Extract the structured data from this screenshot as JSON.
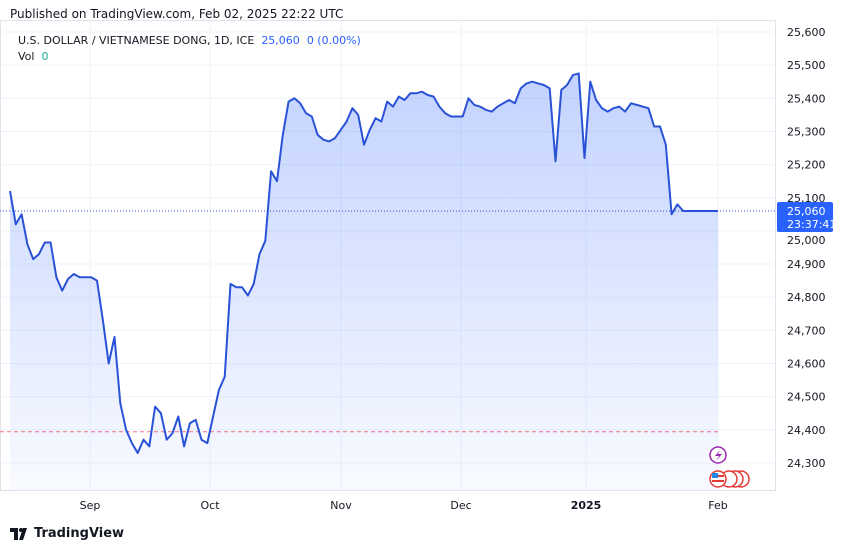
{
  "header": {
    "published": "Published on TradingView.com, Feb 02, 2025 22:22 UTC"
  },
  "legend": {
    "symbol": "U.S. DOLLAR / VIETNAMESE DONG, 1D, ICE",
    "price": "25,060",
    "change": "0 (0.00%)",
    "vol_label": "Vol",
    "vol_value": "0"
  },
  "price_label": {
    "value": "25,060",
    "countdown": "23:37:41"
  },
  "logo": {
    "text": "TradingView"
  },
  "colors": {
    "line": "#2952d6",
    "fill": "#2962ff",
    "price_label": "#2962ff",
    "low_line": "#f23645"
  },
  "icons": [
    "lightning-event-icon",
    "us-flag-event-icon"
  ],
  "chart_data": {
    "type": "area",
    "title": "U.S. DOLLAR / VIETNAMESE DONG, 1D, ICE",
    "ylim": [
      24220,
      25650
    ],
    "y_ticks": [
      "25,600",
      "25,500",
      "25,400",
      "25,300",
      "25,200",
      "25,100",
      "25,000",
      "24,900",
      "24,800",
      "24,700",
      "24,600",
      "24,500",
      "24,400",
      "24,300"
    ],
    "y_tick_values": [
      25600,
      25500,
      25400,
      25300,
      25200,
      25100,
      25000,
      24900,
      24800,
      24700,
      24600,
      24500,
      24400,
      24300
    ],
    "x_ticks": [
      "Sep",
      "Oct",
      "Nov",
      "Dec",
      "2025",
      "Feb"
    ],
    "last_value": 25060,
    "reference_line": 24394,
    "grid": true,
    "values": [
      25120,
      25020,
      25050,
      24960,
      24915,
      24930,
      24965,
      24965,
      24860,
      24820,
      24855,
      24870,
      24860,
      24860,
      24860,
      24850,
      24730,
      24600,
      24680,
      24480,
      24400,
      24360,
      24330,
      24370,
      24350,
      24470,
      24450,
      24370,
      24390,
      24440,
      24350,
      24420,
      24430,
      24370,
      24360,
      24440,
      24520,
      24560,
      24840,
      24830,
      24830,
      24805,
      24840,
      24930,
      24970,
      25180,
      25150,
      25290,
      25390,
      25400,
      25385,
      25355,
      25345,
      25290,
      25275,
      25270,
      25280,
      25305,
      25330,
      25370,
      25350,
      25260,
      25305,
      25340,
      25330,
      25390,
      25375,
      25405,
      25395,
      25415,
      25415,
      25420,
      25410,
      25405,
      25375,
      25355,
      25345,
      25345,
      25345,
      25400,
      25380,
      25375,
      25365,
      25360,
      25375,
      25385,
      25395,
      25385,
      25430,
      25445,
      25450,
      25445,
      25440,
      25430,
      25210,
      25425,
      25440,
      25470,
      25475,
      25220,
      25450,
      25395,
      25370,
      25360,
      25370,
      25375,
      25360,
      25385,
      25380,
      25375,
      25370,
      25315,
      25315,
      25260,
      25050,
      25080,
      25060,
      25060,
      25060,
      25060,
      25060,
      25060,
      25060
    ]
  }
}
